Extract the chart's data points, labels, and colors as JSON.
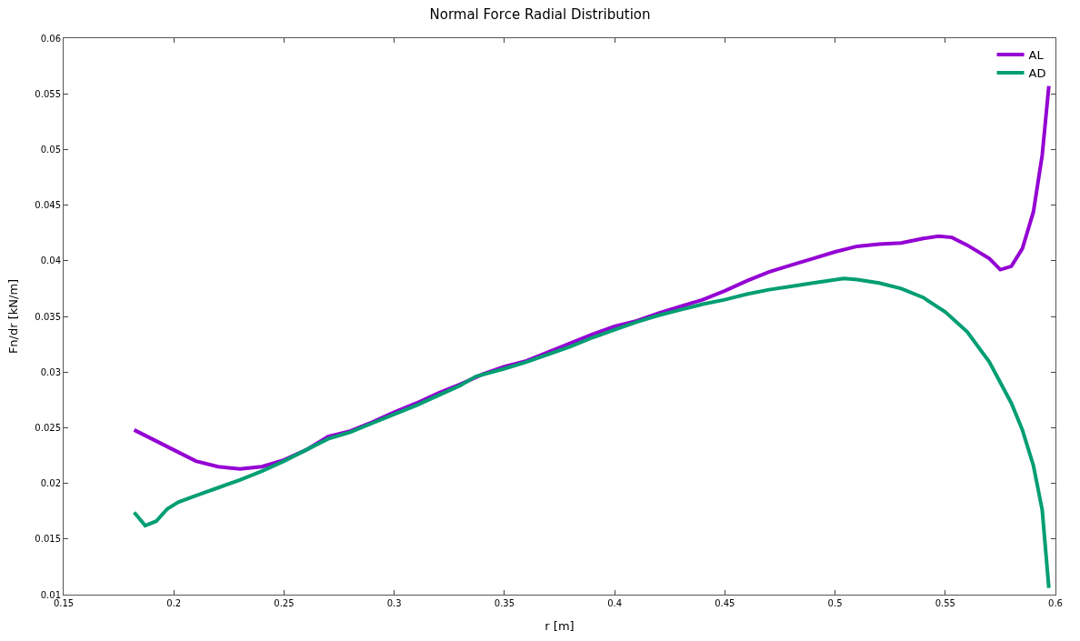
{
  "chart_data": {
    "type": "line",
    "title": "Normal Force Radial Distribution",
    "xlabel": "r [m]",
    "ylabel": "Fn/dr [kN/m]",
    "xlim": [
      0.15,
      0.6
    ],
    "xticks": [
      {
        "value": 0.15,
        "label": "0.15"
      },
      {
        "value": 0.2,
        "label": "0.2"
      },
      {
        "value": 0.25,
        "label": "0.25"
      },
      {
        "value": 0.3,
        "label": "0.3"
      },
      {
        "value": 0.35,
        "label": "0.35"
      },
      {
        "value": 0.4,
        "label": "0.4"
      },
      {
        "value": 0.45,
        "label": "0.45"
      },
      {
        "value": 0.5,
        "label": "0.5"
      },
      {
        "value": 0.55,
        "label": "0.55"
      },
      {
        "value": 0.6,
        "label": "0.6"
      }
    ],
    "ylim": [
      0.01,
      0.06
    ],
    "yticks": [
      {
        "value": 0.01,
        "label": "0.01"
      },
      {
        "value": 0.015,
        "label": "0.015"
      },
      {
        "value": 0.02,
        "label": "0.02"
      },
      {
        "value": 0.025,
        "label": "0.025"
      },
      {
        "value": 0.03,
        "label": "0.03"
      },
      {
        "value": 0.035,
        "label": "0.035"
      },
      {
        "value": 0.04,
        "label": "0.04"
      },
      {
        "value": 0.045,
        "label": "0.045"
      },
      {
        "value": 0.05,
        "label": "0.05"
      },
      {
        "value": 0.055,
        "label": "0.055"
      },
      {
        "value": 0.06,
        "label": "0.06"
      }
    ],
    "grid": false,
    "legend": "top right",
    "marker": "none",
    "line_style": "solid",
    "series": [
      {
        "name": "AL",
        "color": "#9400d3",
        "x": [
          0.182,
          0.19,
          0.2,
          0.21,
          0.22,
          0.23,
          0.24,
          0.25,
          0.26,
          0.27,
          0.28,
          0.29,
          0.3,
          0.31,
          0.32,
          0.33,
          0.34,
          0.35,
          0.36,
          0.37,
          0.38,
          0.39,
          0.4,
          0.41,
          0.42,
          0.43,
          0.44,
          0.45,
          0.46,
          0.47,
          0.48,
          0.49,
          0.5,
          0.51,
          0.52,
          0.53,
          0.54,
          0.547,
          0.553,
          0.56,
          0.57,
          0.575,
          0.58,
          0.585,
          0.59,
          0.594,
          0.597
        ],
        "values": [
          0.0248,
          0.024,
          0.023,
          0.022,
          0.0215,
          0.0213,
          0.0215,
          0.0221,
          0.023,
          0.0242,
          0.0247,
          0.0255,
          0.0264,
          0.0272,
          0.0281,
          0.0289,
          0.0298,
          0.0305,
          0.031,
          0.0318,
          0.0326,
          0.0334,
          0.0341,
          0.0346,
          0.0353,
          0.0359,
          0.0365,
          0.0373,
          0.0382,
          0.039,
          0.0396,
          0.0402,
          0.0408,
          0.0413,
          0.0415,
          0.0416,
          0.042,
          0.0422,
          0.0421,
          0.0414,
          0.0402,
          0.0392,
          0.0395,
          0.0411,
          0.0444,
          0.0495,
          0.0557
        ]
      },
      {
        "name": "AD",
        "color": "#009e73",
        "x": [
          0.182,
          0.187,
          0.192,
          0.197,
          0.202,
          0.21,
          0.22,
          0.23,
          0.24,
          0.25,
          0.26,
          0.27,
          0.28,
          0.29,
          0.3,
          0.31,
          0.32,
          0.33,
          0.337,
          0.35,
          0.36,
          0.37,
          0.38,
          0.39,
          0.4,
          0.41,
          0.42,
          0.43,
          0.44,
          0.45,
          0.46,
          0.47,
          0.48,
          0.49,
          0.504,
          0.51,
          0.52,
          0.53,
          0.54,
          0.55,
          0.56,
          0.57,
          0.58,
          0.585,
          0.59,
          0.594,
          0.597
        ],
        "values": [
          0.0174,
          0.0162,
          0.0166,
          0.0177,
          0.0183,
          0.0189,
          0.0196,
          0.0203,
          0.0211,
          0.022,
          0.023,
          0.024,
          0.0246,
          0.0254,
          0.0262,
          0.027,
          0.0279,
          0.0288,
          0.0296,
          0.0303,
          0.0309,
          0.0316,
          0.0323,
          0.0331,
          0.0338,
          0.0345,
          0.0351,
          0.0356,
          0.0361,
          0.0365,
          0.037,
          0.0374,
          0.0377,
          0.038,
          0.0384,
          0.0383,
          0.038,
          0.0375,
          0.0367,
          0.0354,
          0.0336,
          0.0309,
          0.0272,
          0.0248,
          0.0216,
          0.0176,
          0.0106
        ]
      }
    ]
  }
}
